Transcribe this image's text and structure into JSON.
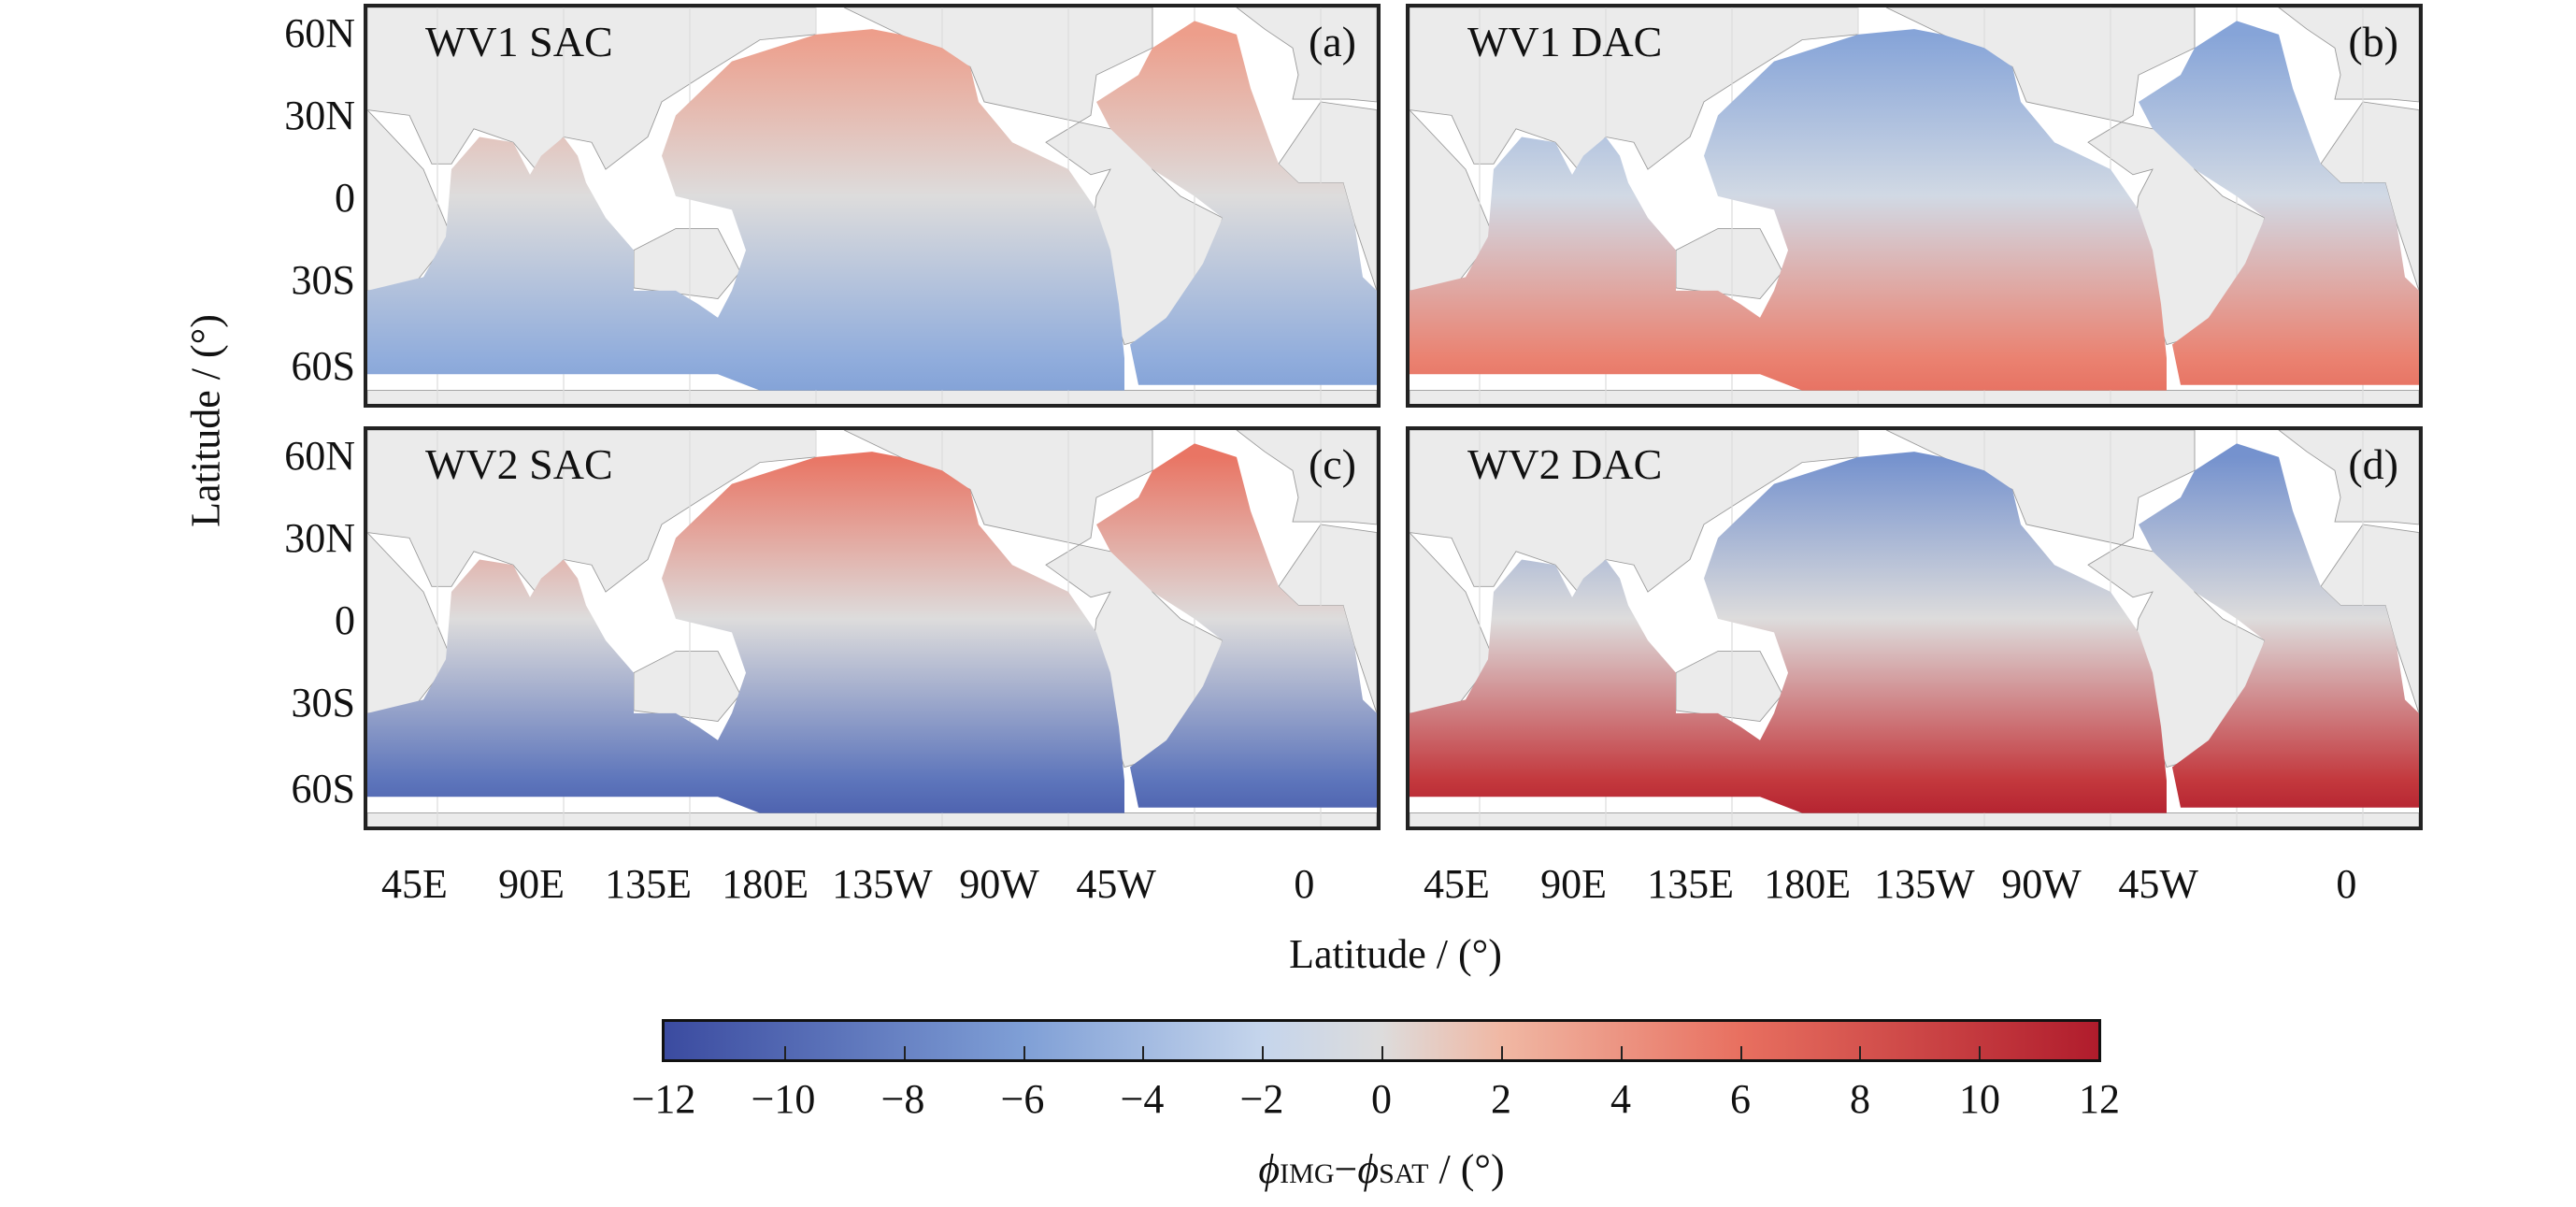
{
  "chart_data": {
    "type": "heatmap",
    "panels": [
      {
        "title": "WV1 SAC",
        "label": "(a)",
        "lat_values": {
          "60N": 3,
          "0": 0,
          "60S": -5
        }
      },
      {
        "title": "WV1 DAC",
        "label": "(b)",
        "lat_values": {
          "60N": -5,
          "0": -1,
          "60S": 5
        }
      },
      {
        "title": "WV2 SAC",
        "label": "(c)",
        "lat_values": {
          "60N": 5,
          "0": 0,
          "60S": -9
        }
      },
      {
        "title": "WV2 DAC",
        "label": "(d)",
        "lat_values": {
          "60N": -6,
          "0": 0,
          "60S": 10
        }
      }
    ],
    "lat_ticks": [
      "60N",
      "30N",
      "0",
      "30S",
      "60S"
    ],
    "lon_ticks": [
      "45E",
      "90E",
      "135E",
      "180E",
      "135W",
      "90W",
      "45W",
      "0"
    ],
    "ylabel": "Latitude / (°)",
    "xlabel": "Latitude / (°)",
    "colorbar": {
      "range": [
        -12,
        12
      ],
      "ticks": [
        "−12",
        "−10",
        "−8",
        "−6",
        "−4",
        "−2",
        "0",
        "2",
        "4",
        "6",
        "8",
        "10",
        "12"
      ],
      "label_phi1": "ϕ",
      "label_sub1": "IMG",
      "label_sep": "−",
      "label_phi2": "ϕ",
      "label_sub2": "SAT",
      "label_unit": " / (°)",
      "colormap": [
        "#3b4ba0",
        "#7f9fd6",
        "#c5d5ec",
        "#dddcdc",
        "#f0b8a4",
        "#e87060",
        "#b01c2c"
      ]
    },
    "colors": {
      "land": "#ebebeb",
      "coast": "#9a9a9a",
      "no_data": "#ffffff"
    }
  }
}
